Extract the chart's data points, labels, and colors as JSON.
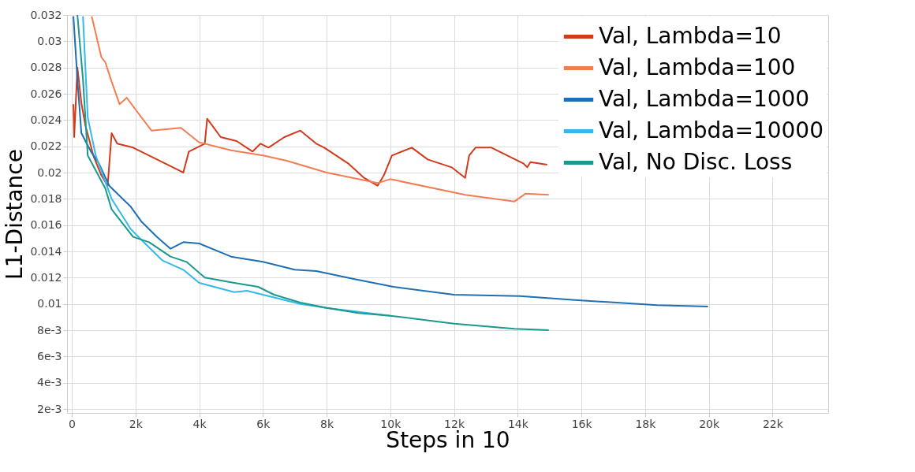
{
  "chart_data": {
    "type": "line",
    "xlabel": "Steps in 10",
    "ylabel": "L1-Distance",
    "xlim": [
      -150,
      23750
    ],
    "ylim": [
      0.0017,
      0.032
    ],
    "xticks": [
      0,
      {
        "value": 2000,
        "label": "2k"
      },
      {
        "value": 4000,
        "label": "4k"
      },
      {
        "value": 6000,
        "label": "6k"
      },
      {
        "value": 8000,
        "label": "8k"
      },
      {
        "value": 10000,
        "label": "10k"
      },
      {
        "value": 12000,
        "label": "12k"
      },
      {
        "value": 14000,
        "label": "14k"
      },
      {
        "value": 16000,
        "label": "16k"
      },
      {
        "value": 18000,
        "label": "18k"
      },
      {
        "value": 20000,
        "label": "20k"
      },
      {
        "value": 22000,
        "label": "22k"
      }
    ],
    "yticks": [
      {
        "value": 0.002,
        "label": "2e-3"
      },
      {
        "value": 0.004,
        "label": "4e-3"
      },
      {
        "value": 0.006,
        "label": "6e-3"
      },
      {
        "value": 0.008,
        "label": "8e-3"
      },
      0.01,
      0.012,
      0.014,
      0.016,
      0.018,
      0.02,
      0.022,
      0.024,
      0.026,
      0.028,
      0.03,
      0.032
    ],
    "grid": true,
    "legend": "top right",
    "series": [
      {
        "name": "Val, Lambda=10",
        "color": "#d13a1a",
        "x": [
          50,
          75,
          175,
          300,
          425,
          675,
          925,
          1125,
          1250,
          1425,
          1925,
          2425,
          2925,
          3425,
          3500,
          3675,
          3925,
          4175,
          4250,
          4675,
          5175,
          5675,
          5925,
          6175,
          6675,
          7175,
          7675,
          7925,
          8675,
          9175,
          9600,
          9800,
          10050,
          10675,
          11175,
          11925,
          12350,
          12475,
          12675,
          13175,
          13675,
          14175,
          14300,
          14400,
          14925
        ],
        "values": [
          0.0252,
          0.0227,
          0.028,
          0.0253,
          0.0236,
          0.0213,
          0.0198,
          0.019,
          0.023,
          0.0222,
          0.0219,
          0.0213,
          0.0207,
          0.0201,
          0.02,
          0.0216,
          0.0219,
          0.0222,
          0.0241,
          0.0227,
          0.0224,
          0.0216,
          0.0222,
          0.0219,
          0.0227,
          0.0232,
          0.0222,
          0.0219,
          0.0207,
          0.0196,
          0.019,
          0.0198,
          0.0213,
          0.0219,
          0.021,
          0.0204,
          0.0196,
          0.0213,
          0.0219,
          0.0219,
          0.0213,
          0.0207,
          0.0204,
          0.0208,
          0.0206
        ]
      },
      {
        "name": "Val, Lambda=100",
        "color": "#f47c52",
        "x": [
          625,
          925,
          1050,
          1225,
          1500,
          1725,
          2000,
          2500,
          3425,
          4000,
          5000,
          6000,
          6750,
          8000,
          9600,
          10000,
          12350,
          13900,
          14250,
          14975
        ],
        "values": [
          0.0319,
          0.0288,
          0.0284,
          0.0271,
          0.0252,
          0.0257,
          0.0248,
          0.0232,
          0.0234,
          0.0223,
          0.0217,
          0.0213,
          0.0209,
          0.02,
          0.0192,
          0.0195,
          0.0183,
          0.0178,
          0.0184,
          0.0183
        ]
      },
      {
        "name": "Val, Lambda=1000",
        "color": "#1f6fb4",
        "x": [
          50,
          175,
          300,
          600,
          850,
          1175,
          1850,
          2175,
          2675,
          3100,
          3500,
          4000,
          5000,
          6000,
          7000,
          7675,
          8850,
          10100,
          12000,
          14075,
          15800,
          18375,
          19975
        ],
        "values": [
          0.0319,
          0.0271,
          0.023,
          0.0216,
          0.0207,
          0.019,
          0.0174,
          0.0163,
          0.0151,
          0.0142,
          0.0147,
          0.0146,
          0.0136,
          0.0132,
          0.0126,
          0.0125,
          0.0119,
          0.0113,
          0.0107,
          0.0106,
          0.0103,
          0.0099,
          0.0098
        ]
      },
      {
        "name": "Val, Lambda=10000",
        "color": "#35b8ea",
        "x": [
          350,
          500,
          750,
          1250,
          1850,
          2175,
          2850,
          3500,
          4000,
          5100,
          5500,
          6175,
          7175,
          8000,
          10000
        ],
        "values": [
          0.0319,
          0.0242,
          0.0213,
          0.018,
          0.0157,
          0.0149,
          0.0133,
          0.0126,
          0.0116,
          0.0109,
          0.011,
          0.0106,
          0.01,
          0.0097,
          0.0091
        ]
      },
      {
        "name": "Val, No Disc. Loss",
        "color": "#1a9a8c",
        "x": [
          175,
          350,
          500,
          1050,
          1250,
          1925,
          2425,
          3100,
          3600,
          4175,
          5100,
          5850,
          6350,
          7175,
          8000,
          9000,
          10000,
          12000,
          13900,
          14975
        ],
        "values": [
          0.032,
          0.0271,
          0.0213,
          0.0188,
          0.0172,
          0.0151,
          0.0147,
          0.0136,
          0.0132,
          0.012,
          0.0116,
          0.0113,
          0.0107,
          0.0101,
          0.0097,
          0.0093,
          0.0091,
          0.0085,
          0.0081,
          0.008
        ]
      }
    ]
  }
}
